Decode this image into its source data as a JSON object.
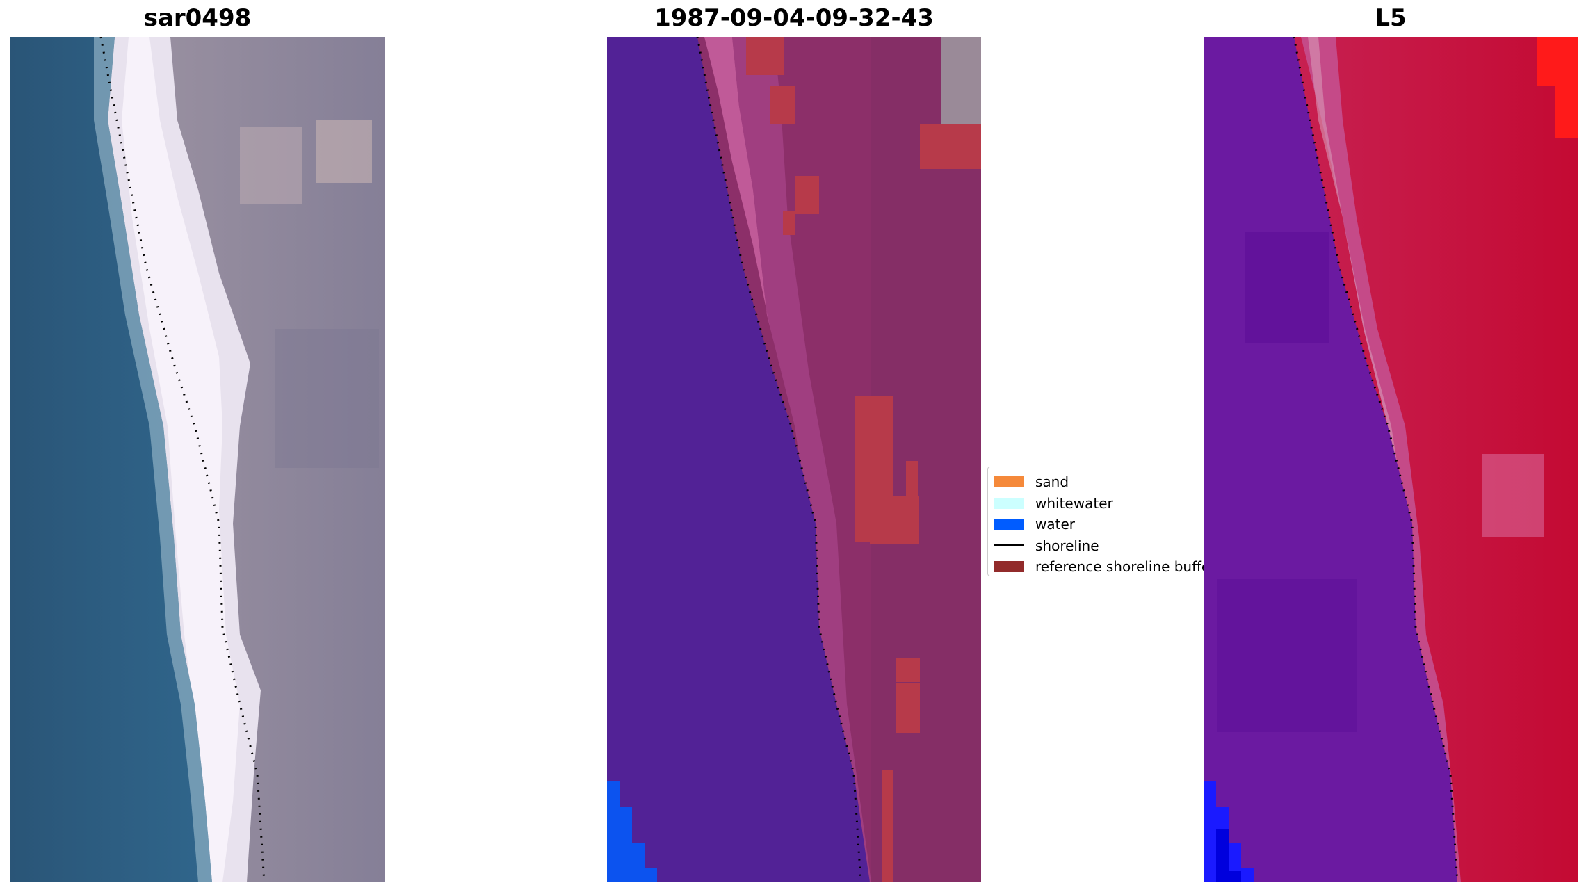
{
  "panels": [
    {
      "title": "sar0498"
    },
    {
      "title": "1987-09-04-09-32-43"
    },
    {
      "title": "L5"
    }
  ],
  "legend": {
    "items": [
      {
        "label": "sand",
        "color": "#f5893a"
      },
      {
        "label": "whitewater",
        "color": "#ccffff"
      },
      {
        "label": "water",
        "color": "#005cff"
      },
      {
        "label": "shoreline",
        "color": "#000000"
      },
      {
        "label": "reference shoreline buffer",
        "color": "#922b2b"
      }
    ]
  }
}
